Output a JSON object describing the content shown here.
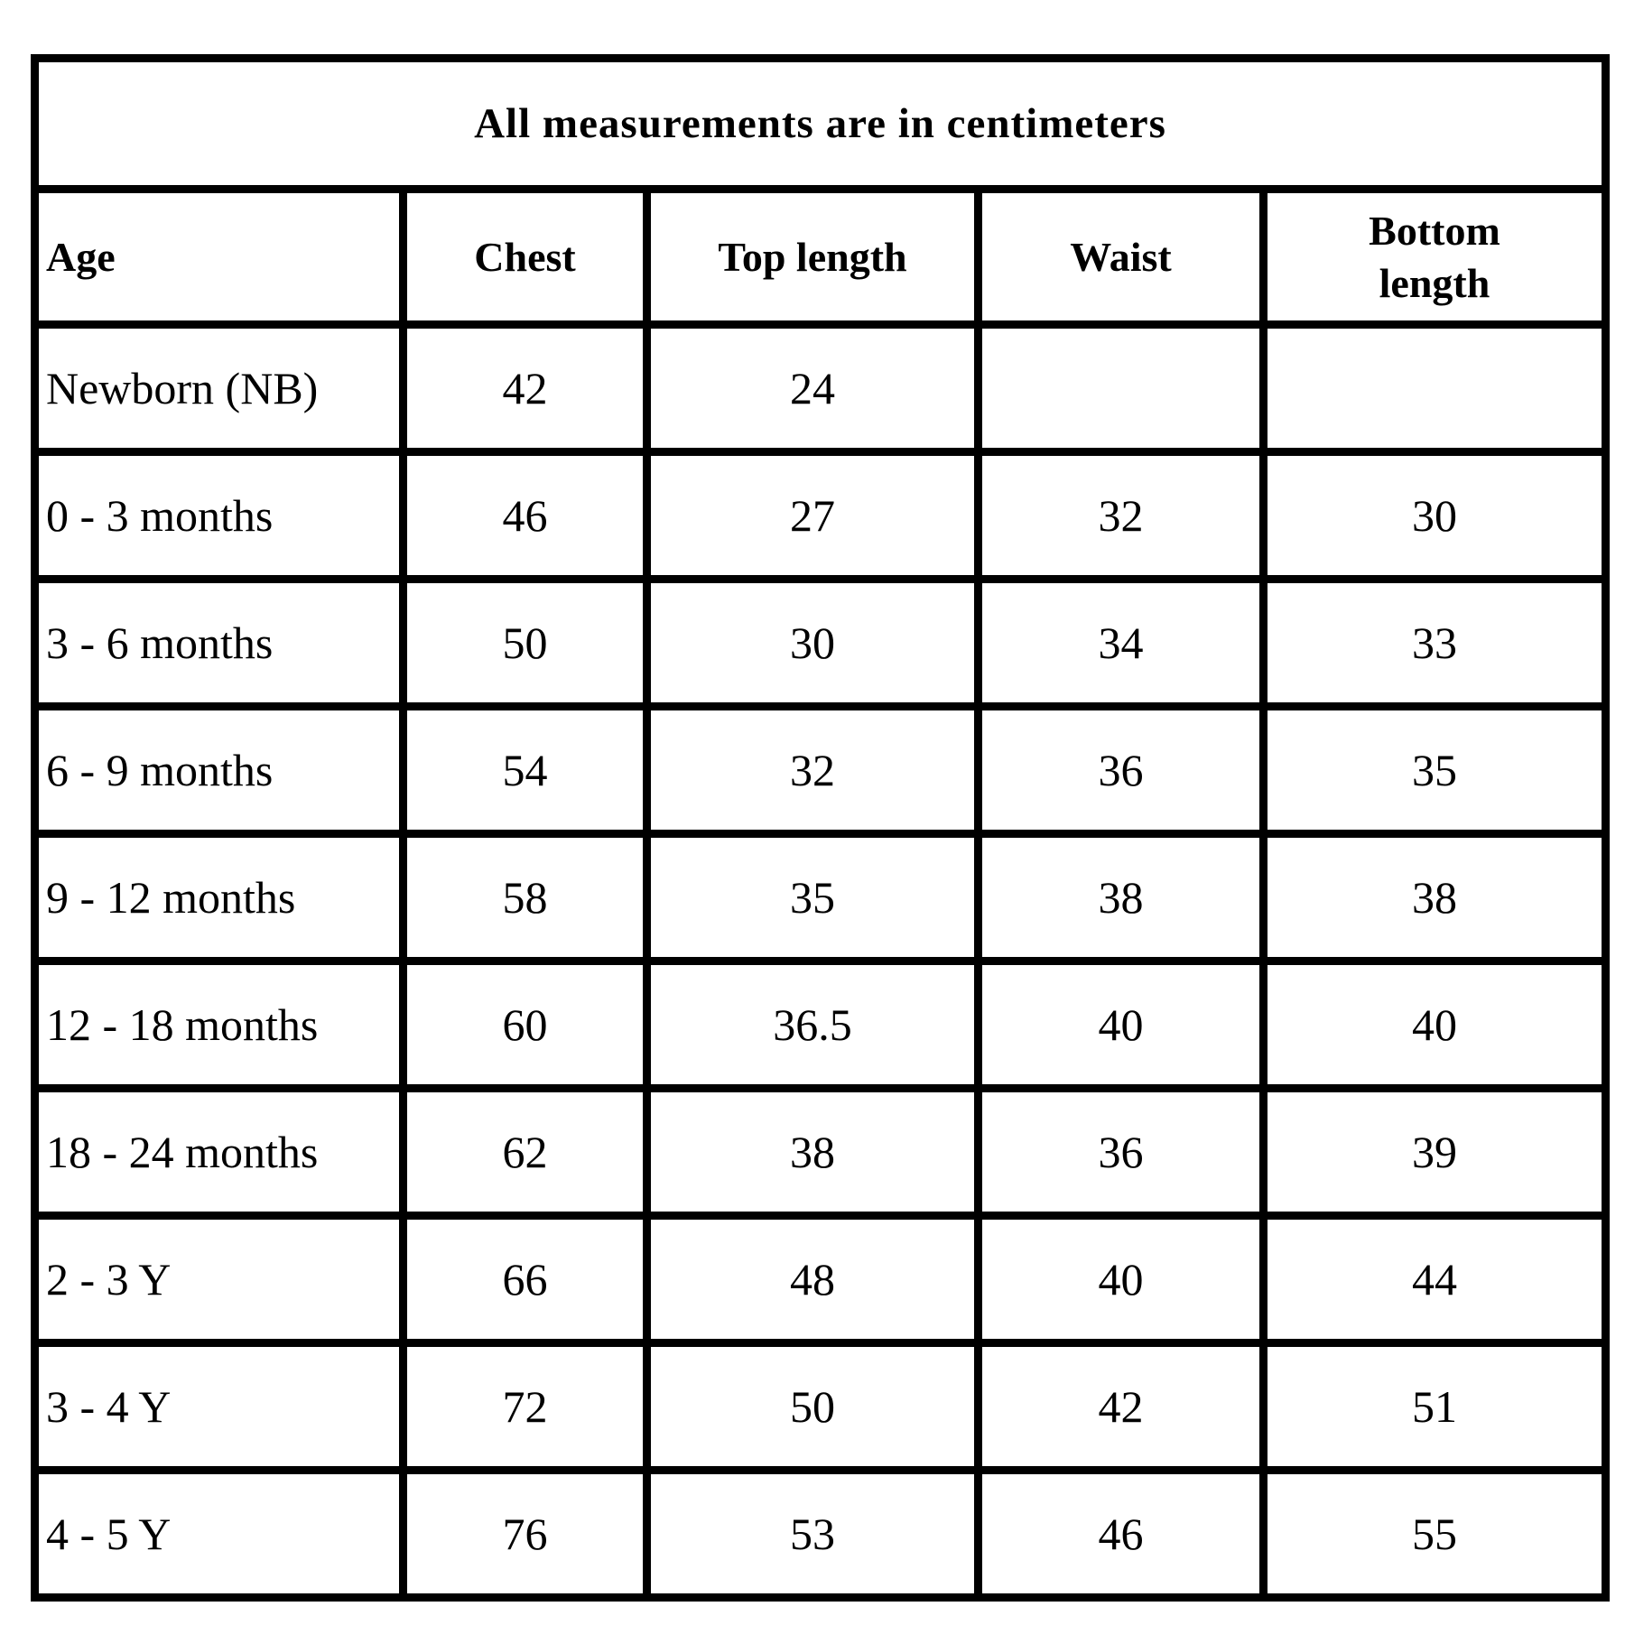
{
  "title": "All measurements are in centimeters",
  "colors": {
    "background": "#ffffff",
    "border": "#000000",
    "text": "#000000"
  },
  "chart_data": {
    "type": "table",
    "title": "All measurements are in centimeters",
    "columns": [
      "Age",
      "Chest",
      "Top length",
      "Waist",
      "Bottom length"
    ],
    "rows": [
      [
        "Newborn (NB)",
        "42",
        "24",
        "",
        ""
      ],
      [
        "0 - 3 months",
        "46",
        "27",
        "32",
        "30"
      ],
      [
        "3 - 6 months",
        "50",
        "30",
        "34",
        "33"
      ],
      [
        "6 - 9 months",
        "54",
        "32",
        "36",
        "35"
      ],
      [
        "9 - 12 months",
        "58",
        "35",
        "38",
        "38"
      ],
      [
        "12 - 18 months",
        "60",
        "36.5",
        "40",
        "40"
      ],
      [
        "18 - 24 months",
        "62",
        "38",
        "36",
        "39"
      ],
      [
        "2 - 3 Y",
        "66",
        "48",
        "40",
        "44"
      ],
      [
        "3 - 4 Y",
        "72",
        "50",
        "42",
        "51"
      ],
      [
        "4 - 5 Y",
        "76",
        "53",
        "46",
        "55"
      ]
    ]
  }
}
